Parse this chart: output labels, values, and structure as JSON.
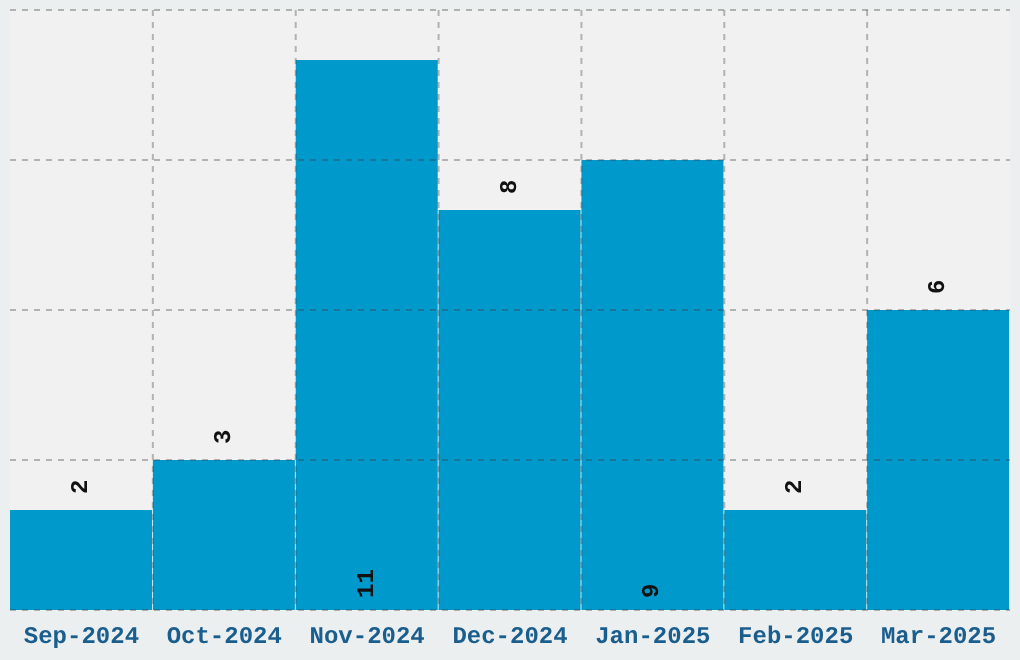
{
  "chart_data": {
    "type": "bar",
    "categories": [
      "Sep-2024",
      "Oct-2024",
      "Nov-2024",
      "Dec-2024",
      "Jan-2025",
      "Feb-2025",
      "Mar-2025"
    ],
    "values": [
      2,
      3,
      11,
      8,
      9,
      2,
      6
    ],
    "color": "#0099cc",
    "ylim": [
      0,
      12
    ],
    "tick_labels": "x",
    "grid": true,
    "data_labels": true
  }
}
